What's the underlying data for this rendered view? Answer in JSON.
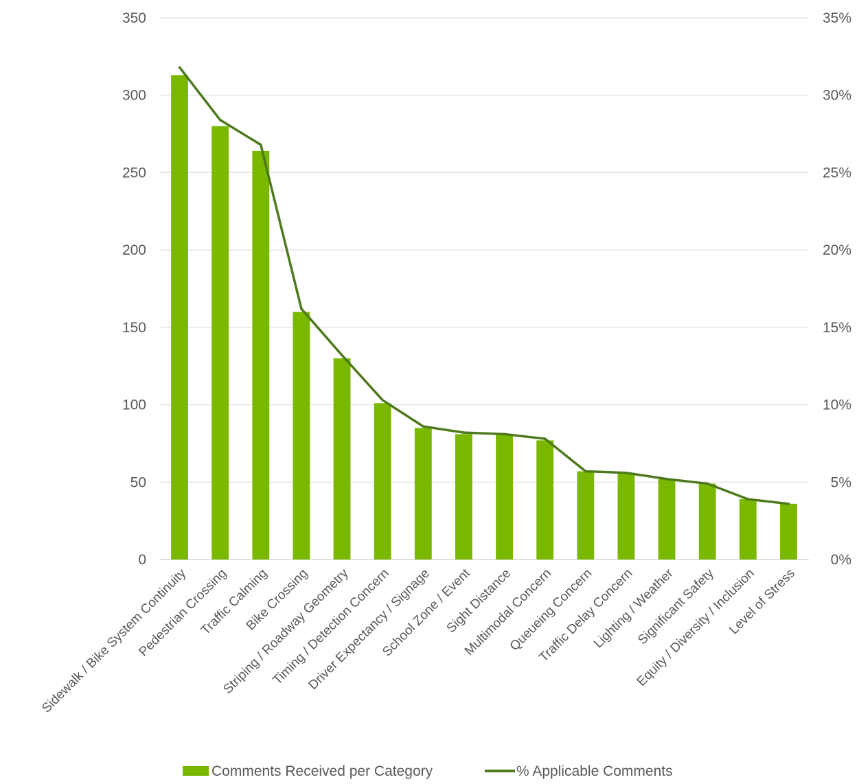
{
  "chart_data": {
    "type": "bar",
    "categories": [
      "Sidewalk / Bike System Continuity",
      "Pedestrian Crossing",
      "Traffic Calming",
      "Bike Crossing",
      "Striping / Roadway Geometry",
      "Timing / Detection Concern",
      "Driver Expectancy / Signage",
      "School Zone / Event",
      "Sight Distance",
      "Multimodal Concern",
      "Queueing Concern",
      "Traffic Delay Concern",
      "Lighting / Weather",
      "Significant Safety",
      "Equity / Diversity / Inclusion",
      "Level of Stress"
    ],
    "series": [
      {
        "name": "Comments Received per Category",
        "type": "bar",
        "axis": "left",
        "color": "#7ab800",
        "values": [
          313,
          280,
          264,
          160,
          130,
          101,
          85,
          81,
          81,
          77,
          57,
          56,
          52,
          49,
          39,
          36
        ]
      },
      {
        "name": "% Applicable Comments",
        "type": "line",
        "axis": "right",
        "color": "#4e7a1d",
        "values": [
          31.8,
          28.4,
          26.8,
          16.2,
          13.2,
          10.3,
          8.6,
          8.2,
          8.1,
          7.8,
          5.7,
          5.6,
          5.2,
          4.9,
          3.9,
          3.6
        ]
      }
    ],
    "y_left": {
      "ylim": [
        0,
        350
      ],
      "ticks": [
        "0",
        "50",
        "100",
        "150",
        "200",
        "250",
        "300",
        "350"
      ]
    },
    "y_right": {
      "ylim": [
        0,
        35
      ],
      "ticks": [
        "0%",
        "5%",
        "10%",
        "15%",
        "20%",
        "25%",
        "30%",
        "35%"
      ]
    },
    "grid": true,
    "legend": "bottom"
  }
}
